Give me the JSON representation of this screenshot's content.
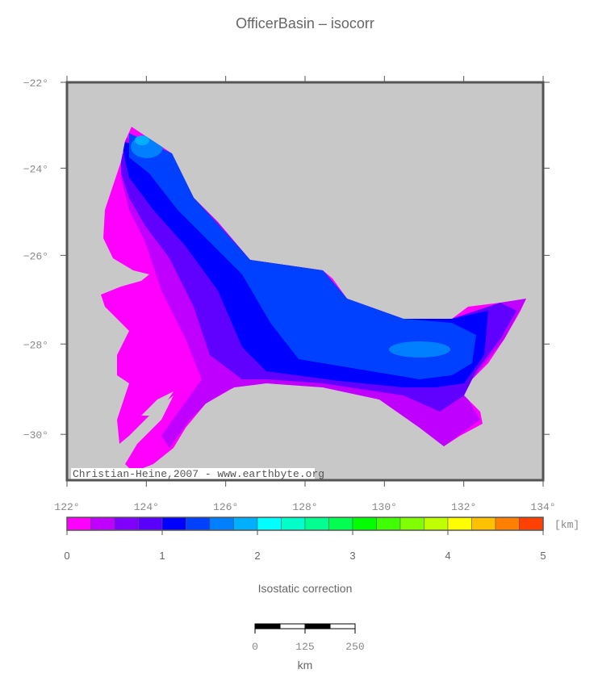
{
  "title": "OfficerBasin – isocorr",
  "map": {
    "xlim": [
      122,
      134
    ],
    "ylim": [
      -31,
      -22
    ],
    "lon_ticks": [
      {
        "value": 122,
        "label": "122°"
      },
      {
        "value": 124,
        "label": "124°"
      },
      {
        "value": 126,
        "label": "126°"
      },
      {
        "value": 128,
        "label": "128°"
      },
      {
        "value": 130,
        "label": "130°"
      },
      {
        "value": 132,
        "label": "132°"
      },
      {
        "value": 134,
        "label": "134°"
      }
    ],
    "lat_ticks": [
      {
        "value": -22,
        "label": "−22°"
      },
      {
        "value": -24,
        "label": "−24°"
      },
      {
        "value": -26,
        "label": "−26°"
      },
      {
        "value": -28,
        "label": "−28°"
      },
      {
        "value": -30,
        "label": "−30°"
      }
    ],
    "credit": "Christian-Heine,2007 - www.earthbyte.org"
  },
  "colorbar": {
    "range": [
      0,
      5
    ],
    "ticks": [
      0,
      1,
      2,
      3,
      4,
      5
    ],
    "unit": "[km]",
    "label": "Isostatic correction",
    "colors": [
      "#ff00ff",
      "#c000ff",
      "#8000ff",
      "#5a00ff",
      "#0000ff",
      "#0040ff",
      "#0080ff",
      "#00b0ff",
      "#00ffff",
      "#00ffc8",
      "#00ff90",
      "#00ff50",
      "#00ff00",
      "#40ff00",
      "#80ff00",
      "#c0ff00",
      "#ffff00",
      "#ffc000",
      "#ff8000",
      "#ff4000"
    ]
  },
  "scalebar": {
    "ticks": [
      0,
      125,
      250
    ],
    "unit": "km"
  }
}
